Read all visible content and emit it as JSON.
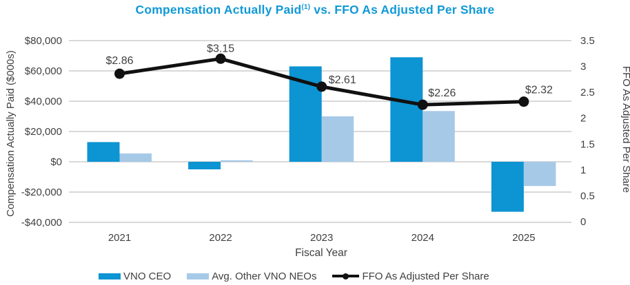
{
  "title": {
    "main": "Compensation Actually Paid",
    "superscript": "(1)",
    "rest": " vs. FFO As Adjusted Per Share"
  },
  "colors": {
    "ceo_bar": "#0D94D2",
    "neo_bar": "#A6C9E8",
    "ffo_line": "#111111",
    "grid": "#D9D9D9",
    "title": "#1199D6",
    "text": "#3F3F3F"
  },
  "chart_data": {
    "type": "bar+line",
    "categories": [
      "2021",
      "2022",
      "2023",
      "2024",
      "2025"
    ],
    "series": [
      {
        "name": "VNO CEO",
        "type": "bar",
        "axis": "left",
        "color_key": "ceo_bar",
        "values": [
          13000,
          -5000,
          63000,
          69000,
          -33000
        ]
      },
      {
        "name": "Avg. Other VNO NEOs",
        "type": "bar",
        "axis": "left",
        "color_key": "neo_bar",
        "values": [
          5500,
          1000,
          30000,
          33500,
          -16000
        ]
      },
      {
        "name": "FFO As Adjusted Per Share",
        "type": "line",
        "axis": "right",
        "color_key": "ffo_line",
        "values": [
          2.86,
          3.15,
          2.61,
          2.26,
          2.32
        ],
        "labels": [
          "$2.86",
          "$3.15",
          "$2.61",
          "$2.26",
          "$2.32"
        ]
      }
    ],
    "left_axis": {
      "title": "Compensation Actually Paid ($000s)",
      "tick_labels": [
        "$80,000",
        "$60,000",
        "$40,000",
        "$20,000",
        "$0",
        "-$20,000",
        "-$40,000"
      ],
      "tick_values": [
        80000,
        60000,
        40000,
        20000,
        0,
        -20000,
        -40000
      ],
      "range": [
        -40000,
        80000
      ]
    },
    "right_axis": {
      "title": "FFO As Adjusted Per Share",
      "tick_labels": [
        "3.5",
        "3",
        "2.5",
        "2",
        "1.5",
        "1",
        "0.5",
        "0"
      ],
      "tick_values": [
        3.5,
        3,
        2.5,
        2,
        1.5,
        1,
        0.5,
        0
      ],
      "range": [
        0,
        3.5
      ]
    },
    "xlabel": "Fiscal Year",
    "grid": "horizontal-only",
    "legend_position": "bottom",
    "label_offsets": [
      [
        0,
        -14,
        "middle"
      ],
      [
        0,
        -10,
        "middle"
      ],
      [
        10,
        -5,
        "start"
      ],
      [
        8,
        -12,
        "start"
      ],
      [
        2,
        -12,
        "start"
      ]
    ]
  },
  "legend": {
    "items": [
      {
        "label": "VNO CEO"
      },
      {
        "label": "Avg. Other VNO NEOs"
      },
      {
        "label": "FFO As Adjusted Per Share"
      }
    ]
  }
}
